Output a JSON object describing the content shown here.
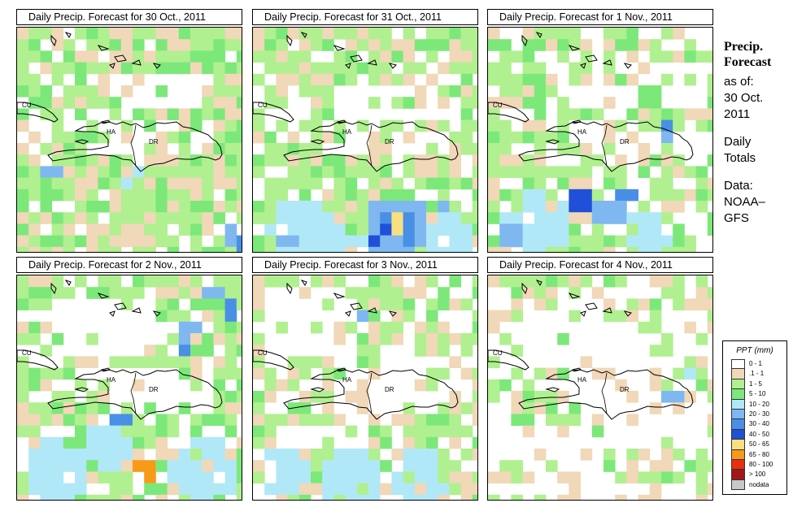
{
  "panels": [
    {
      "title": "Daily Precip. Forecast for  30 Oct., 2011"
    },
    {
      "title": "Daily Precip. Forecast for  31 Oct., 2011"
    },
    {
      "title": "Daily Precip. Forecast for  1 Nov., 2011"
    },
    {
      "title": "Daily Precip. Forecast for  2 Nov., 2011"
    },
    {
      "title": "Daily Precip. Forecast for  3 Nov., 2011"
    },
    {
      "title": "Daily Precip. Forecast for  4 Nov., 2011"
    }
  ],
  "map_labels": {
    "cuba": "CU",
    "haiti": "HA",
    "dominican_republic": "DR"
  },
  "side": {
    "title_line1": "Precip.",
    "title_line2": "Forecast",
    "asof": "as of:",
    "date_line1": "30 Oct.",
    "date_line2": "2011",
    "daily_line1": "Daily",
    "daily_line2": "Totals",
    "data_line1": "Data:",
    "data_line2": "NOAA–",
    "data_line3": "GFS"
  },
  "legend": {
    "title": "PPT (mm)",
    "items": [
      {
        "label": "0 - 1",
        "color": "#ffffff"
      },
      {
        "label": ".1 - 1",
        "color": "#f0d8b8"
      },
      {
        "label": "1 - 5",
        "color": "#b0f090"
      },
      {
        "label": "5 - 10",
        "color": "#7de87a"
      },
      {
        "label": "10 - 20",
        "color": "#b0e8f8"
      },
      {
        "label": "20 - 30",
        "color": "#7fb8f0"
      },
      {
        "label": "30 - 40",
        "color": "#4a8fe6"
      },
      {
        "label": "40 - 50",
        "color": "#2050d8"
      },
      {
        "label": "50 - 65",
        "color": "#f8e080"
      },
      {
        "label": "65 - 80",
        "color": "#f79a1a"
      },
      {
        "label": "80 - 100",
        "color": "#e83010"
      },
      {
        "label": "> 100",
        "color": "#a01818"
      },
      {
        "label": "nodata",
        "color": "#c8c8c8"
      }
    ]
  }
}
